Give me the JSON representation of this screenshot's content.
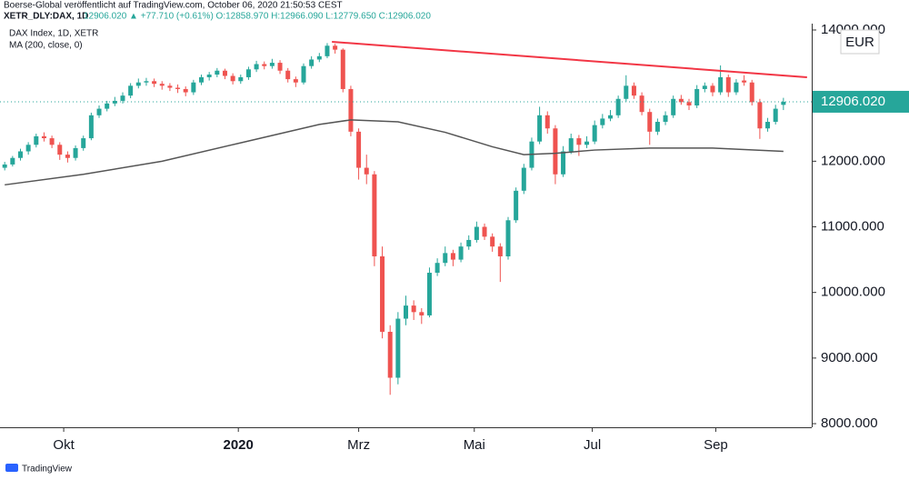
{
  "chart_data": {
    "type": "candlestick",
    "publisher": "Boerse-Global veröffentlicht auf TradingView.com, October 06, 2020 21:50:53 CEST",
    "symbol": "XETR_DLY:DAX, 1D",
    "quote": "12906.020 ▲ +77.710 (+0.61%) O:12858.970 H:12966.090 L:12779.650 C:12906.020",
    "legend": [
      "DAX Index, 1D, XETR",
      "MA (200, close, 0)"
    ],
    "currency": "EUR",
    "last_price_label": "12906.020",
    "footer": "TradingView",
    "up_color": "#26a69a",
    "down_color": "#ef5350",
    "xlim": [
      -0.6,
      102.6
    ],
    "xticks": [
      {
        "value": 7.5,
        "label": "Okt"
      },
      {
        "value": 29.7,
        "label": "2020"
      },
      {
        "value": 45,
        "label": "Mrz"
      },
      {
        "value": 59.7,
        "label": "Mai"
      },
      {
        "value": 74.7,
        "label": "Jul"
      },
      {
        "value": 90.4,
        "label": "Sep"
      }
    ],
    "ylim": [
      7945,
      14457
    ],
    "yticks": [
      {
        "value": 8000,
        "label": "8000.000"
      },
      {
        "value": 9000,
        "label": "9000.000"
      },
      {
        "value": 10000,
        "label": "10000.000"
      },
      {
        "value": 11000,
        "label": "11000.000"
      },
      {
        "value": 12000,
        "label": "12000.000"
      },
      {
        "value": 14000,
        "label": "14000.000"
      }
    ],
    "ohlc": [
      [
        11900,
        11990,
        11860,
        11950
      ],
      [
        11950,
        12080,
        11920,
        12050
      ],
      [
        12050,
        12190,
        12010,
        12150
      ],
      [
        12150,
        12290,
        12100,
        12250
      ],
      [
        12250,
        12420,
        12210,
        12380
      ],
      [
        12380,
        12440,
        12300,
        12350
      ],
      [
        12350,
        12390,
        12200,
        12250
      ],
      [
        12250,
        12290,
        12020,
        12100
      ],
      [
        12100,
        12150,
        11980,
        12050
      ],
      [
        12050,
        12240,
        12010,
        12200
      ],
      [
        12200,
        12390,
        12160,
        12350
      ],
      [
        12350,
        12740,
        12320,
        12700
      ],
      [
        12700,
        12850,
        12660,
        12800
      ],
      [
        12800,
        12920,
        12760,
        12880
      ],
      [
        12880,
        12980,
        12840,
        12920
      ],
      [
        12920,
        13050,
        12880,
        13000
      ],
      [
        13000,
        13190,
        12960,
        13150
      ],
      [
        13150,
        13260,
        13110,
        13200
      ],
      [
        13200,
        13270,
        13150,
        13220
      ],
      [
        13220,
        13260,
        13130,
        13180
      ],
      [
        13180,
        13220,
        13090,
        13150
      ],
      [
        13150,
        13190,
        13070,
        13120
      ],
      [
        13120,
        13170,
        13040,
        13100
      ],
      [
        13100,
        13140,
        12990,
        13050
      ],
      [
        13050,
        13240,
        13010,
        13200
      ],
      [
        13200,
        13320,
        13160,
        13280
      ],
      [
        13280,
        13360,
        13230,
        13320
      ],
      [
        13320,
        13420,
        13280,
        13380
      ],
      [
        13380,
        13410,
        13250,
        13300
      ],
      [
        13300,
        13340,
        13170,
        13220
      ],
      [
        13220,
        13320,
        13180,
        13280
      ],
      [
        13280,
        13440,
        13240,
        13400
      ],
      [
        13400,
        13530,
        13360,
        13480
      ],
      [
        13480,
        13520,
        13400,
        13450
      ],
      [
        13450,
        13560,
        13410,
        13500
      ],
      [
        13500,
        13540,
        13330,
        13380
      ],
      [
        13380,
        13420,
        13200,
        13250
      ],
      [
        13250,
        13290,
        13130,
        13200
      ],
      [
        13200,
        13490,
        13170,
        13450
      ],
      [
        13450,
        13600,
        13410,
        13550
      ],
      [
        13550,
        13650,
        13510,
        13600
      ],
      [
        13600,
        13800,
        13570,
        13760
      ],
      [
        13760,
        13790,
        13640,
        13700
      ],
      [
        13700,
        13720,
        13050,
        13100
      ],
      [
        13100,
        13150,
        12380,
        12450
      ],
      [
        12450,
        12500,
        11720,
        11900
      ],
      [
        11900,
        12100,
        11650,
        11800
      ],
      [
        11800,
        11850,
        10400,
        10550
      ],
      [
        10550,
        10700,
        9300,
        9400
      ],
      [
        9400,
        9500,
        8440,
        8700
      ],
      [
        8700,
        9700,
        8600,
        9600
      ],
      [
        9600,
        9950,
        9500,
        9800
      ],
      [
        9800,
        9880,
        9580,
        9700
      ],
      [
        9700,
        9760,
        9520,
        9650
      ],
      [
        9650,
        10380,
        9620,
        10300
      ],
      [
        10300,
        10520,
        10250,
        10450
      ],
      [
        10450,
        10700,
        10400,
        10600
      ],
      [
        10600,
        10650,
        10400,
        10500
      ],
      [
        10500,
        10760,
        10460,
        10700
      ],
      [
        10700,
        10870,
        10650,
        10800
      ],
      [
        10800,
        11080,
        10760,
        11000
      ],
      [
        11000,
        11050,
        10800,
        10850
      ],
      [
        10850,
        10900,
        10620,
        10700
      ],
      [
        10700,
        10750,
        10160,
        10550
      ],
      [
        10550,
        11150,
        10500,
        11100
      ],
      [
        11100,
        11600,
        11060,
        11550
      ],
      [
        11550,
        11960,
        11500,
        11900
      ],
      [
        11900,
        12360,
        11860,
        12300
      ],
      [
        12300,
        12830,
        12260,
        12700
      ],
      [
        12700,
        12760,
        12420,
        12500
      ],
      [
        12500,
        12550,
        11650,
        11800
      ],
      [
        11800,
        12230,
        11760,
        12150
      ],
      [
        12150,
        12420,
        12110,
        12350
      ],
      [
        12350,
        12400,
        12080,
        12250
      ],
      [
        12250,
        12380,
        12200,
        12300
      ],
      [
        12300,
        12620,
        12260,
        12550
      ],
      [
        12550,
        12720,
        12500,
        12650
      ],
      [
        12650,
        12780,
        12610,
        12700
      ],
      [
        12700,
        13000,
        12660,
        12950
      ],
      [
        12950,
        13310,
        12910,
        13150
      ],
      [
        13150,
        13200,
        12950,
        13000
      ],
      [
        13000,
        13050,
        12700,
        12750
      ],
      [
        12750,
        12800,
        12250,
        12450
      ],
      [
        12450,
        12650,
        12400,
        12600
      ],
      [
        12600,
        12760,
        12550,
        12700
      ],
      [
        12700,
        13000,
        12660,
        12950
      ],
      [
        12950,
        13010,
        12860,
        12900
      ],
      [
        12900,
        12950,
        12780,
        12850
      ],
      [
        12850,
        13160,
        12810,
        13100
      ],
      [
        13100,
        13200,
        13050,
        13150
      ],
      [
        13150,
        13190,
        12990,
        13050
      ],
      [
        13050,
        13460,
        13010,
        13280
      ],
      [
        13280,
        13320,
        12980,
        13050
      ],
      [
        13050,
        13250,
        13010,
        13200
      ],
      [
        13230,
        13310,
        13150,
        13200
      ],
      [
        13200,
        13240,
        12850,
        12900
      ],
      [
        12900,
        12950,
        12340,
        12500
      ],
      [
        12500,
        12660,
        12450,
        12600
      ],
      [
        12600,
        12860,
        12560,
        12800
      ],
      [
        12858.97,
        12966.09,
        12779.65,
        12906.02
      ]
    ],
    "ma": {
      "color": "#555555",
      "x": [
        0,
        10,
        20,
        30,
        40,
        44,
        50,
        56,
        62,
        66,
        70,
        75,
        82,
        90,
        99
      ],
      "values": [
        11640,
        11800,
        12000,
        12280,
        12560,
        12630,
        12600,
        12440,
        12220,
        12100,
        12120,
        12170,
        12200,
        12200,
        12150
      ]
    },
    "trendline": {
      "color": "#f23645",
      "x": [
        41.6,
        102
      ],
      "values": [
        13820,
        13280
      ]
    }
  }
}
